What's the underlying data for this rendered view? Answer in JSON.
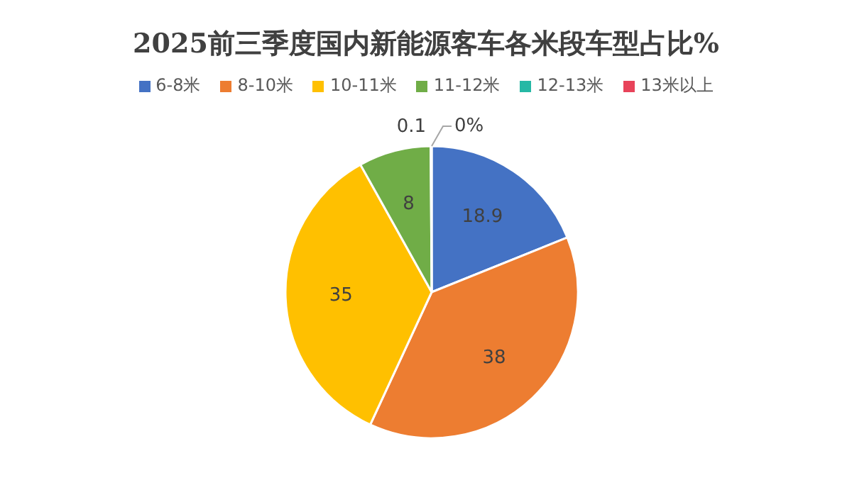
{
  "chart_data": {
    "type": "pie",
    "title": "2025前三季度国内新能源客车各米段车型占比%",
    "categories": [
      "6-8米",
      "8-10米",
      "10-11米",
      "11-12米",
      "12-13米",
      "13米以上"
    ],
    "values": [
      18.9,
      38,
      35,
      8,
      0.1,
      0
    ],
    "value_labels": [
      "18.9",
      "38",
      "35",
      "8",
      "0.1",
      "0%"
    ],
    "colors": [
      "#4472c4",
      "#ed7d31",
      "#ffc000",
      "#70ad47",
      "#26b8a5",
      "#e8435a"
    ],
    "legend": "top"
  }
}
